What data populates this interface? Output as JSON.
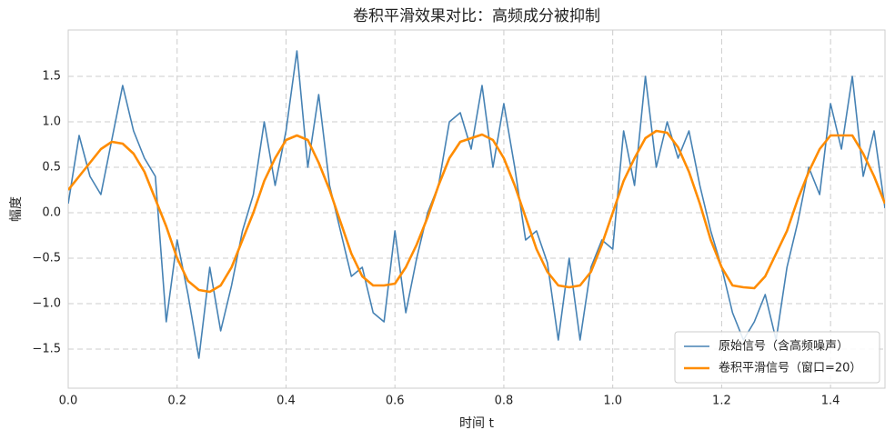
{
  "chart_data": {
    "type": "line",
    "title": "卷积平滑效果对比：高频成分被抑制",
    "xlabel": "时间 t",
    "ylabel": "幅度",
    "x": [
      0,
      0.02,
      0.04,
      0.06,
      0.08,
      0.1,
      0.12,
      0.14,
      0.16,
      0.18,
      0.2,
      0.22,
      0.24,
      0.26,
      0.28,
      0.3,
      0.32,
      0.34,
      0.36,
      0.38,
      0.4,
      0.42,
      0.44,
      0.46,
      0.48,
      0.5,
      0.52,
      0.54,
      0.56,
      0.58,
      0.6,
      0.62,
      0.64,
      0.66,
      0.68,
      0.7,
      0.72,
      0.74,
      0.76,
      0.78,
      0.8,
      0.82,
      0.84,
      0.86,
      0.88,
      0.9,
      0.92,
      0.94,
      0.96,
      0.98,
      1.0,
      1.02,
      1.04,
      1.06,
      1.08,
      1.1,
      1.12,
      1.14,
      1.16,
      1.18,
      1.2,
      1.22,
      1.24,
      1.26,
      1.28,
      1.3,
      1.32,
      1.34,
      1.36,
      1.38,
      1.4,
      1.42,
      1.44,
      1.46,
      1.48,
      1.5
    ],
    "series": [
      {
        "name": "原始信号（含高频噪声）",
        "color": "#4682b4",
        "width": 1.6,
        "values": [
          0.1,
          0.85,
          0.4,
          0.2,
          0.8,
          1.4,
          0.9,
          0.6,
          0.4,
          -1.2,
          -0.3,
          -0.9,
          -1.6,
          -0.6,
          -1.3,
          -0.8,
          -0.2,
          0.2,
          1.0,
          0.3,
          0.9,
          1.78,
          0.5,
          1.3,
          0.3,
          -0.2,
          -0.7,
          -0.6,
          -1.1,
          -1.2,
          -0.2,
          -1.1,
          -0.5,
          0.0,
          0.3,
          1.0,
          1.1,
          0.7,
          1.4,
          0.5,
          1.2,
          0.5,
          -0.3,
          -0.2,
          -0.55,
          -1.4,
          -0.5,
          -1.4,
          -0.6,
          -0.3,
          -0.4,
          0.9,
          0.3,
          1.5,
          0.5,
          1.0,
          0.6,
          0.9,
          0.3,
          -0.2,
          -0.6,
          -1.1,
          -1.4,
          -1.2,
          -0.9,
          -1.4,
          -0.6,
          -0.1,
          0.5,
          0.2,
          1.2,
          0.7,
          1.5,
          0.4,
          0.9,
          0.05
        ]
      },
      {
        "name": "卷积平滑信号（窗口=20）",
        "color": "#ff8c00",
        "width": 2.6,
        "values": [
          0.25,
          0.4,
          0.55,
          0.7,
          0.78,
          0.76,
          0.65,
          0.45,
          0.15,
          -0.15,
          -0.5,
          -0.75,
          -0.85,
          -0.87,
          -0.8,
          -0.6,
          -0.3,
          0.0,
          0.35,
          0.6,
          0.8,
          0.85,
          0.8,
          0.55,
          0.25,
          -0.1,
          -0.45,
          -0.7,
          -0.8,
          -0.8,
          -0.78,
          -0.6,
          -0.35,
          -0.05,
          0.3,
          0.6,
          0.78,
          0.82,
          0.86,
          0.8,
          0.6,
          0.3,
          -0.05,
          -0.4,
          -0.65,
          -0.8,
          -0.82,
          -0.8,
          -0.65,
          -0.35,
          0.0,
          0.35,
          0.6,
          0.82,
          0.9,
          0.88,
          0.72,
          0.45,
          0.1,
          -0.3,
          -0.6,
          -0.8,
          -0.82,
          -0.83,
          -0.7,
          -0.45,
          -0.2,
          0.15,
          0.45,
          0.7,
          0.85,
          0.85,
          0.85,
          0.65,
          0.4,
          0.1
        ]
      }
    ],
    "xlim": [
      0,
      1.5
    ],
    "ylim": [
      -1.93,
      2.01
    ],
    "xticks": [
      {
        "value": 0,
        "label": "0.0"
      },
      0.2,
      0.4,
      0.6,
      0.8,
      {
        "value": 1,
        "label": "1.0"
      },
      1.2,
      1.4
    ],
    "yticks": [
      {
        "value": -1.5,
        "label": "−1.5"
      },
      {
        "value": -1,
        "label": "−1.0"
      },
      {
        "value": -0.5,
        "label": "−0.5"
      },
      {
        "value": 0,
        "label": "0.0"
      },
      0.5,
      {
        "value": 1,
        "label": "1.0"
      },
      1.5
    ],
    "grid": true,
    "legend": "lower right"
  }
}
